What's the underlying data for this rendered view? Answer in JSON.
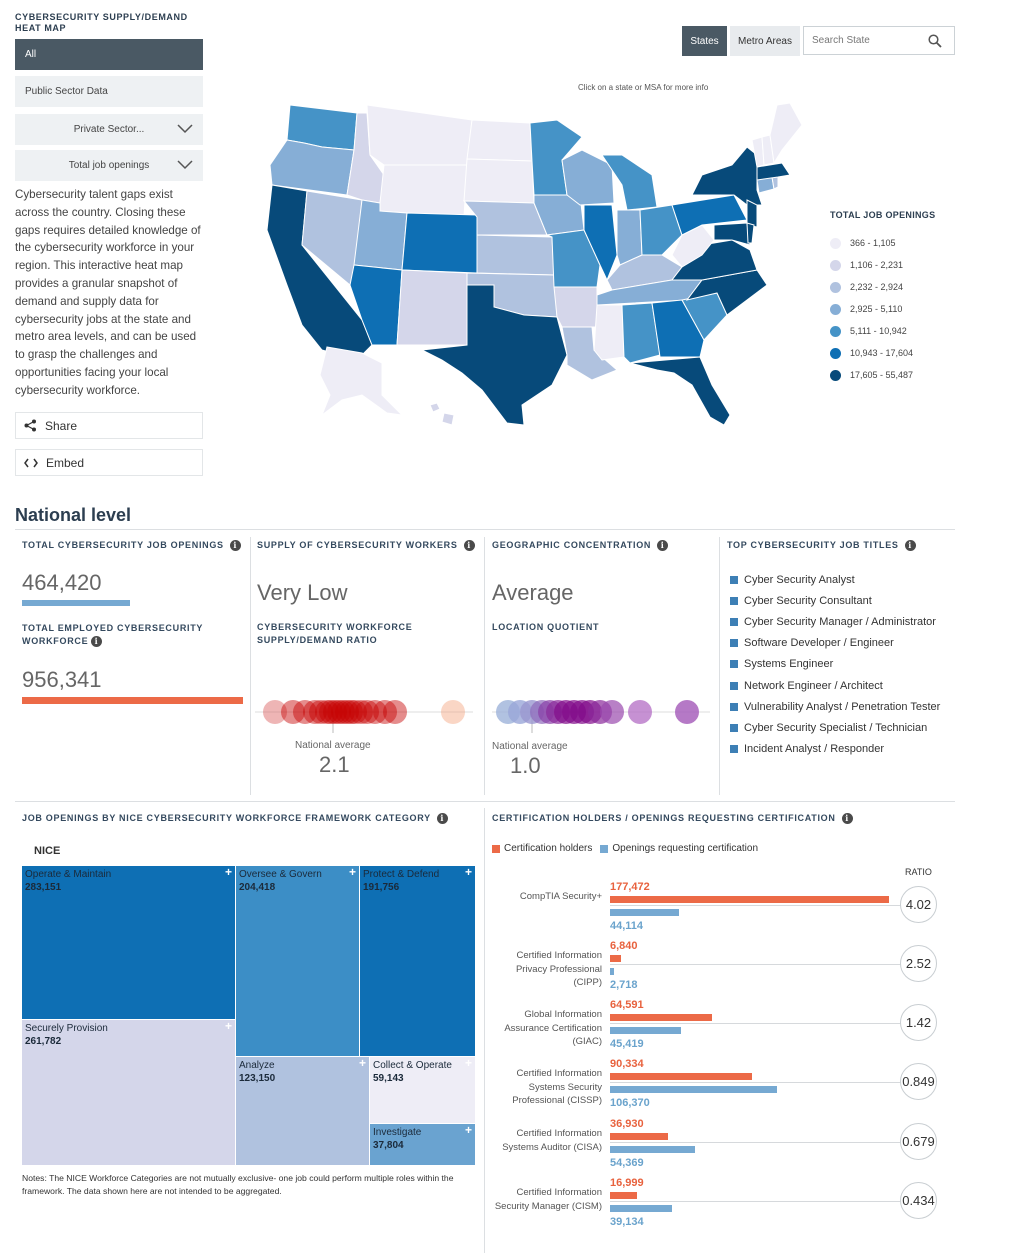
{
  "sidebar": {
    "title": "CYBERSECURITY SUPPLY/DEMAND HEAT MAP",
    "filter_all": "All",
    "filter_public": "Public Sector Data",
    "select_private": "Private Sector...",
    "select_metric": "Total job openings",
    "description": "Cybersecurity talent gaps exist across the country. Closing these gaps requires detailed knowledge of the cybersecurity workforce in your region. This interactive heat map provides a granular snapshot of demand and supply data for cybersecurity jobs at the state and metro area levels, and can be used to grasp the challenges and opportunities facing your local cybersecurity workforce.",
    "share_label": "Share",
    "embed_label": "Embed"
  },
  "controls": {
    "tab_states": "States",
    "tab_metro": "Metro Areas",
    "search_placeholder": "Search State",
    "map_hint": "Click on a state or MSA for more info"
  },
  "legend": {
    "title": "TOTAL JOB OPENINGS",
    "items": [
      {
        "label": "366 - 1,105",
        "color": "#eeedf6"
      },
      {
        "label": "1,106 - 2,231",
        "color": "#d4d6ea"
      },
      {
        "label": "2,232 - 2,924",
        "color": "#b0c2df"
      },
      {
        "label": "2,925 - 5,110",
        "color": "#86aed6"
      },
      {
        "label": "5,111 - 10,942",
        "color": "#4593c7"
      },
      {
        "label": "10,943 - 17,604",
        "color": "#0e6fb4"
      },
      {
        "label": "17,605 - 55,487",
        "color": "#074a7a"
      }
    ]
  },
  "national": {
    "title": "National level",
    "total_openings_title": "TOTAL CYBERSECURITY JOB OPENINGS",
    "total_openings_value": "464,420",
    "total_employed_title": "TOTAL EMPLOYED CYBERSECURITY WORKFORCE",
    "total_employed_value": "956,341",
    "supply_title": "SUPPLY OF CYBERSECURITY WORKERS",
    "supply_value": "Very Low",
    "ratio_title": "CYBERSECURITY WORKFORCE SUPPLY/DEMAND RATIO",
    "ratio_avg_label": "National average",
    "ratio_avg_value": "2.1",
    "geo_title": "GEOGRAPHIC CONCENTRATION",
    "geo_value": "Average",
    "lq_title": "LOCATION QUOTIENT",
    "lq_avg_label": "National average",
    "lq_avg_value": "1.0",
    "top_titles_title": "TOP CYBERSECURITY JOB TITLES",
    "top_titles": [
      "Cyber Security Analyst",
      "Cyber Security Consultant",
      "Cyber Security Manager / Administrator",
      "Software Developer / Engineer",
      "Systems Engineer",
      "Network Engineer / Architect",
      "Vulnerability Analyst / Penetration Tester",
      "Cyber Security Specialist / Technician",
      "Incident Analyst / Responder"
    ]
  },
  "nice": {
    "title": "JOB OPENINGS BY NICE CYBERSECURITY WORKFORCE FRAMEWORK CATEGORY",
    "root_label": "NICE",
    "categories": [
      {
        "name": "Operate & Maintain",
        "value": "283,151"
      },
      {
        "name": "Oversee & Govern",
        "value": "204,418"
      },
      {
        "name": "Protect & Defend",
        "value": "191,756"
      },
      {
        "name": "Securely Provision",
        "value": "261,782"
      },
      {
        "name": "Analyze",
        "value": "123,150"
      },
      {
        "name": "Collect & Operate",
        "value": "59,143"
      },
      {
        "name": "Investigate",
        "value": "37,804"
      }
    ],
    "notes": "Notes: The NICE Workforce Categories are not mutually exclusive- one job could perform multiple roles within the framework. The data shown here are not intended to be aggregated."
  },
  "certifications": {
    "title": "CERTIFICATION HOLDERS / OPENINGS REQUESTING CERTIFICATION",
    "legend_holders": "Certification holders",
    "legend_requests": "Openings requesting certification",
    "ratio_header": "RATIO",
    "colors": {
      "holders": "#ec6a47",
      "requests": "#76a9d2"
    },
    "items": [
      {
        "name": "CompTIA Security+",
        "holders": "177,472",
        "requests": "44,114",
        "holders_n": 177472,
        "requests_n": 44114,
        "ratio": "4.02"
      },
      {
        "name": "Certified Information Privacy Professional (CIPP)",
        "holders": "6,840",
        "requests": "2,718",
        "holders_n": 6840,
        "requests_n": 2718,
        "ratio": "2.52"
      },
      {
        "name": "Global Information Assurance Certification (GIAC)",
        "holders": "64,591",
        "requests": "45,419",
        "holders_n": 64591,
        "requests_n": 45419,
        "ratio": "1.42"
      },
      {
        "name": "Certified Information Systems Security Professional (CISSP)",
        "holders": "90,334",
        "requests": "106,370",
        "holders_n": 90334,
        "requests_n": 106370,
        "ratio": "0.849"
      },
      {
        "name": "Certified Information Systems Auditor (CISA)",
        "holders": "36,930",
        "requests": "54,369",
        "holders_n": 36930,
        "requests_n": 54369,
        "ratio": "0.679"
      },
      {
        "name": "Certified Information Security Manager (CISM)",
        "holders": "16,999",
        "requests": "39,134",
        "holders_n": 16999,
        "requests_n": 39134,
        "ratio": "0.434"
      }
    ]
  }
}
